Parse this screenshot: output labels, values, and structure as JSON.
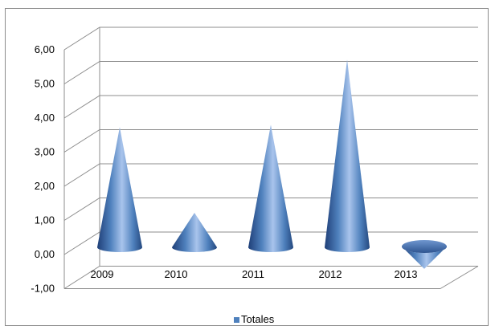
{
  "chart_data": {
    "type": "bar",
    "style": "3d-cone",
    "categories": [
      "2009",
      "2010",
      "2011",
      "2012",
      "2013"
    ],
    "series": [
      {
        "name": "Totales",
        "values": [
          3.65,
          1.05,
          3.72,
          5.7,
          -0.45
        ]
      }
    ],
    "yticks": [
      "6,00",
      "5,00",
      "4,00",
      "3,00",
      "2,00",
      "1,00",
      "0,00",
      "-1,00"
    ],
    "ylim": [
      -1,
      6
    ],
    "grid": true,
    "legend_position": "bottom",
    "colors": {
      "cone_dark": "#1f3f78",
      "cone_mid": "#4f81bd",
      "cone_light": "#a9c4ec",
      "grid": "#8c8c8c"
    }
  }
}
